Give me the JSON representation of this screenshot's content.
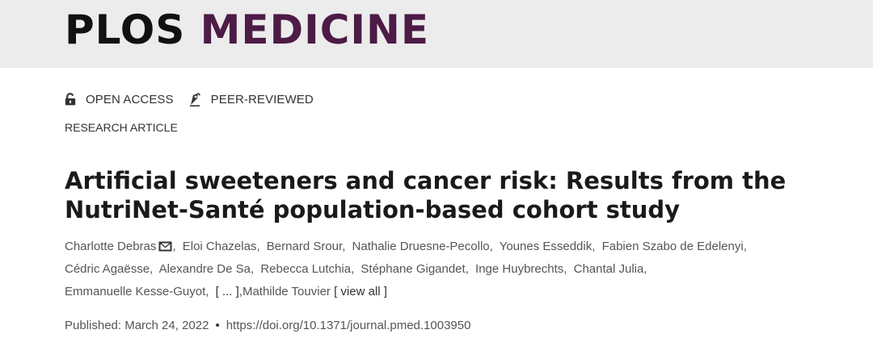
{
  "header": {
    "logo_part1": "PLOS",
    "logo_part2": "MEDICINE",
    "colors": {
      "background": "#ececec",
      "plos": "#111111",
      "medicine": "#4c1b46"
    }
  },
  "badges": [
    {
      "icon": "open-lock-icon",
      "label": "OPEN ACCESS"
    },
    {
      "icon": "peer-reviewed-icon",
      "label": "PEER-REVIEWED"
    }
  ],
  "article_type": "RESEARCH ARTICLE",
  "title_line1": "Artificial sweeteners and cancer risk: Results from the",
  "title_line2": "NutriNet-Santé population-based cohort study",
  "authors": {
    "line1": [
      "Charlotte Debras",
      "Eloi Chazelas",
      "Bernard Srour",
      "Nathalie Druesne-Pecollo",
      "Younes Esseddik",
      "Fabien Szabo de Edelenyi"
    ],
    "line2": [
      "Cédric Agaësse",
      "Alexandre De Sa",
      "Rebecca Lutchia",
      "Stéphane Gigandet",
      "Inge Huybrechts",
      "Chantal Julia"
    ],
    "line3_first": "Emmanuelle Kesse-Guyot",
    "ellipsis": "[ ... ]",
    "last": "Mathilde Touvier",
    "view_all": "[ view all ]",
    "corresponding_icon": "envelope-icon",
    "separator": ","
  },
  "published": {
    "label": "Published: March 24, 2022",
    "bullet": "•",
    "doi": "https://doi.org/10.1371/journal.pmed.1003950"
  }
}
